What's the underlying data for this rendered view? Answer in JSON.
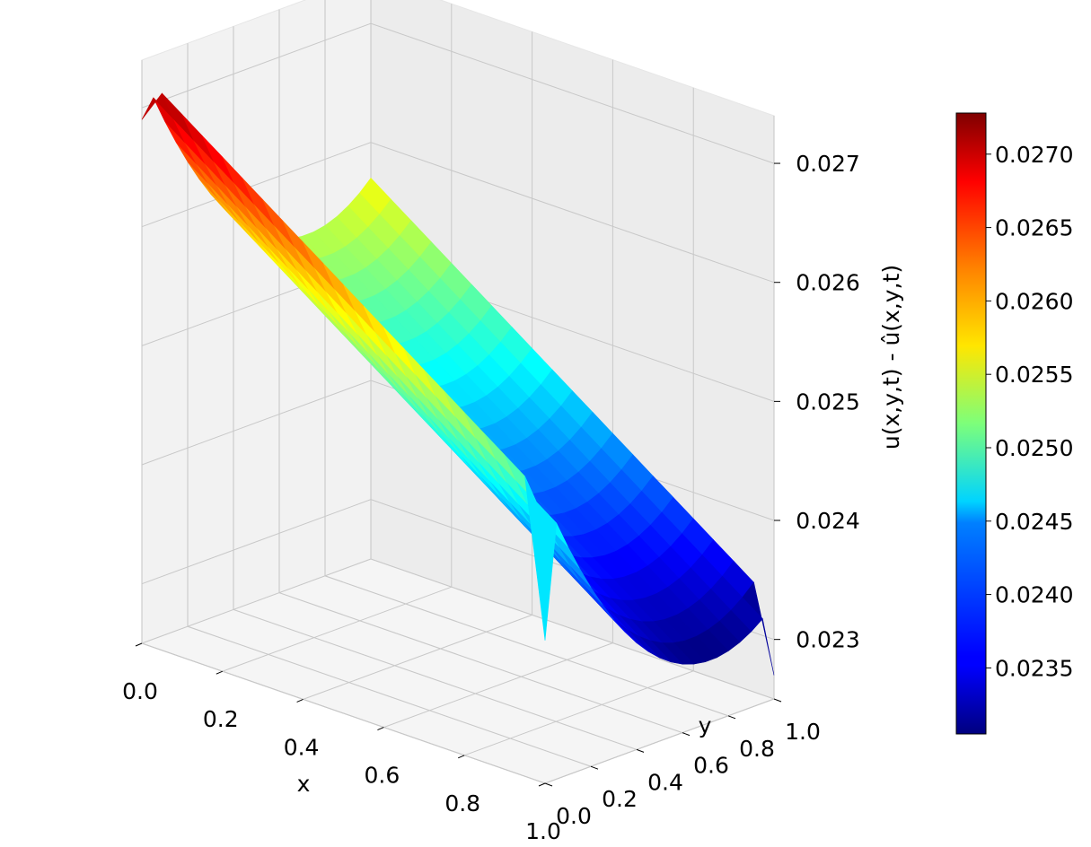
{
  "chart_data": {
    "type": "surface",
    "colormap": "jet",
    "xlabel": "x",
    "ylabel": "y",
    "zlabel": "u(x,y,t) - û(x,y,t)",
    "x_ticks": [
      "0.0",
      "0.2",
      "0.4",
      "0.6",
      "0.8",
      "1.0"
    ],
    "y_ticks": [
      "0.0",
      "0.2",
      "0.4",
      "0.6",
      "0.8",
      "1.0"
    ],
    "z_ticks": [
      "0.023",
      "0.024",
      "0.025",
      "0.026",
      "0.027"
    ],
    "xlim": [
      0,
      1
    ],
    "ylim": [
      0,
      1
    ],
    "zlim": [
      0.0225,
      0.0274
    ],
    "grid": true,
    "colorbar": {
      "min": 0.02305,
      "max": 0.02728,
      "ticks": [
        "0.0235",
        "0.0240",
        "0.0245",
        "0.0250",
        "0.0255",
        "0.0260",
        "0.0265",
        "0.0270"
      ]
    },
    "surface": {
      "grid_points": 21,
      "x": [
        0.0,
        0.05,
        0.1,
        0.15,
        0.2,
        0.25,
        0.3,
        0.35,
        0.4,
        0.45,
        0.5,
        0.55,
        0.6,
        0.65,
        0.7,
        0.75,
        0.8,
        0.85,
        0.9,
        0.95,
        1.0
      ],
      "y": [
        0.0,
        0.05,
        0.1,
        0.15,
        0.2,
        0.25,
        0.3,
        0.35,
        0.4,
        0.45,
        0.5,
        0.55,
        0.6,
        0.65,
        0.7,
        0.75,
        0.8,
        0.85,
        0.9,
        0.95,
        1.0
      ],
      "corner_values": {
        "x0_y0": 0.0273,
        "x1_y0": 0.0249,
        "x0_y1": 0.0257,
        "x1_y1": 0.0233
      },
      "min_value": 0.02305,
      "max_value": 0.02728
    }
  }
}
